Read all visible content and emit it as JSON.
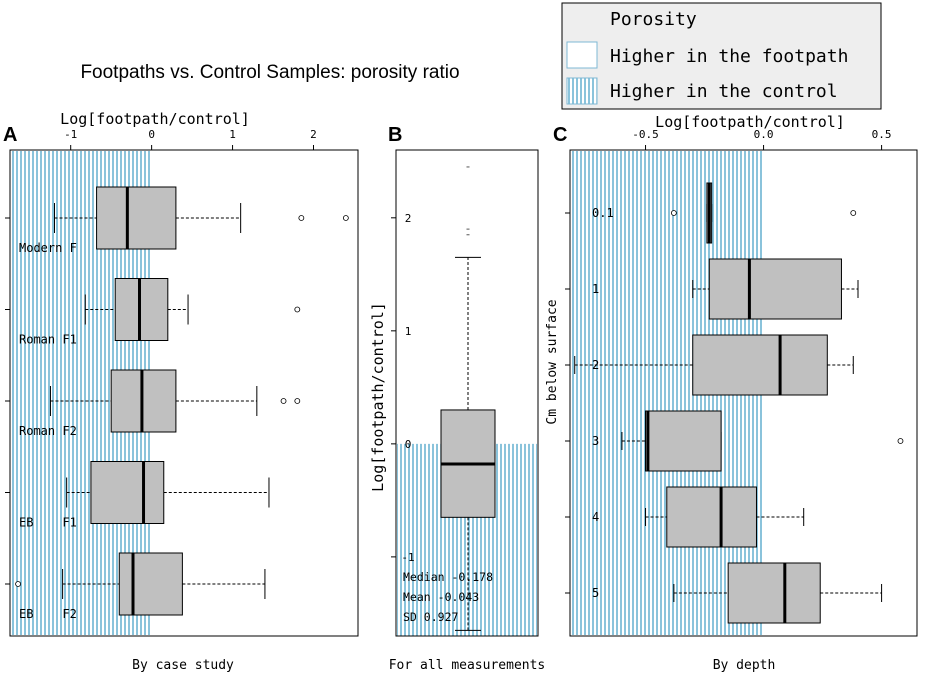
{
  "title": "Footpaths vs. Control Samples: porosity ratio",
  "legend": {
    "title": "Porosity",
    "items": [
      {
        "label": "Higher in the footpath",
        "pattern": "none"
      },
      {
        "label": "Higher in the control",
        "pattern": "vertical-lines"
      }
    ]
  },
  "colors": {
    "box_fill": "#c0c0c0",
    "hatch": "#4aa3c8",
    "stroke": "#000000"
  },
  "chart_data": [
    {
      "panel_letter": "A",
      "type": "boxplot",
      "orientation": "horizontal",
      "axis_label": "Log[footpath/control]",
      "xlabel": "By case study",
      "xlim": [
        -1.75,
        2.55
      ],
      "ticks": [
        -1,
        0,
        1,
        2
      ],
      "tick_labels": [
        "-1",
        "0",
        "1",
        "2"
      ],
      "hatch_range": [
        -1.75,
        0
      ],
      "groups": [
        {
          "label": "Modern F",
          "whisker_low": -1.2,
          "q1": -0.68,
          "median": -0.3,
          "q3": 0.3,
          "whisker_high": 1.1,
          "outliers": [
            1.85,
            2.4
          ]
        },
        {
          "label": "Roman F1",
          "whisker_low": -0.82,
          "q1": -0.45,
          "median": -0.15,
          "q3": 0.2,
          "whisker_high": 0.45,
          "outliers": [
            1.8
          ]
        },
        {
          "label": "Roman F2",
          "whisker_low": -1.25,
          "q1": -0.5,
          "median": -0.12,
          "q3": 0.3,
          "whisker_high": 1.3,
          "outliers": [
            1.63,
            1.8
          ]
        },
        {
          "label": "EB    F1",
          "whisker_low": -1.05,
          "q1": -0.75,
          "median": -0.1,
          "q3": 0.15,
          "whisker_high": 1.45,
          "outliers": []
        },
        {
          "label": "EB    F2",
          "whisker_low": -1.1,
          "q1": -0.4,
          "median": -0.23,
          "q3": 0.38,
          "whisker_high": 1.4,
          "outliers": [
            -1.65
          ]
        }
      ]
    },
    {
      "panel_letter": "B",
      "type": "boxplot",
      "orientation": "vertical",
      "axis_label": "Log[footpath/control]",
      "xlabel": "For all measurements",
      "ylim": [
        -1.7,
        2.6
      ],
      "ticks": [
        -1,
        0,
        1,
        2
      ],
      "tick_labels": [
        "-1",
        "0",
        "1",
        "2"
      ],
      "hatch_range": [
        -1.7,
        0
      ],
      "box": {
        "whisker_low": -1.65,
        "q1": -0.65,
        "median": -0.178,
        "q3": 0.3,
        "whisker_high": 1.65,
        "outliers": [
          1.85,
          1.9,
          2.45
        ]
      },
      "stats": [
        {
          "label": "Median",
          "value": "-0.178"
        },
        {
          "label": "Mean",
          "value": "-0.043"
        },
        {
          "label": "SD",
          "value": "0.927"
        }
      ]
    },
    {
      "panel_letter": "C",
      "type": "boxplot",
      "orientation": "horizontal",
      "axis_label": "Log[footpath/control]",
      "xlabel": "By depth",
      "ylabel": "Cm below surface",
      "xlim": [
        -0.82,
        0.65
      ],
      "ticks": [
        -0.5,
        0,
        0.5
      ],
      "tick_labels": [
        "-0.5",
        "0.0",
        "0.5"
      ],
      "hatch_range": [
        -0.82,
        0
      ],
      "groups": [
        {
          "label": "0.1",
          "whisker_low": -0.24,
          "q1": -0.24,
          "median": -0.23,
          "q3": -0.22,
          "whisker_high": -0.22,
          "outliers": [
            -0.38,
            0.38
          ]
        },
        {
          "label": "1",
          "whisker_low": -0.3,
          "q1": -0.23,
          "median": -0.06,
          "q3": 0.33,
          "whisker_high": 0.4,
          "outliers": []
        },
        {
          "label": "2",
          "whisker_low": -0.8,
          "q1": -0.3,
          "median": 0.07,
          "q3": 0.27,
          "whisker_high": 0.38,
          "outliers": []
        },
        {
          "label": "3",
          "whisker_low": -0.6,
          "q1": -0.5,
          "median": -0.49,
          "q3": -0.18,
          "whisker_high": -0.18,
          "outliers": [
            0.58
          ]
        },
        {
          "label": "4",
          "whisker_low": -0.5,
          "q1": -0.41,
          "median": -0.18,
          "q3": -0.03,
          "whisker_high": 0.17,
          "outliers": []
        },
        {
          "label": "5",
          "whisker_low": -0.38,
          "q1": -0.15,
          "median": 0.09,
          "q3": 0.24,
          "whisker_high": 0.5,
          "outliers": []
        }
      ]
    }
  ]
}
